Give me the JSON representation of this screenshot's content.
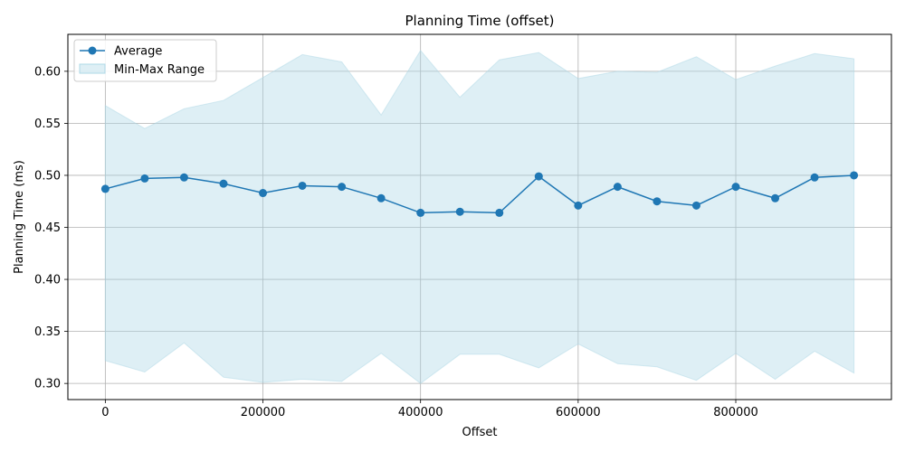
{
  "chart_data": {
    "type": "line",
    "title": "Planning Time (offset)",
    "xlabel": "Offset",
    "ylabel": "Planning Time (ms)",
    "xlim": [
      -47500,
      997500
    ],
    "ylim": [
      0.2845,
      0.6355
    ],
    "grid": true,
    "legend_position": "top-left",
    "x": [
      0,
      50000,
      100000,
      150000,
      200000,
      250000,
      300000,
      350000,
      400000,
      450000,
      500000,
      550000,
      600000,
      650000,
      700000,
      750000,
      800000,
      850000,
      900000,
      950000
    ],
    "x_ticks": [
      0,
      200000,
      400000,
      600000,
      800000
    ],
    "x_tick_labels": [
      "0",
      "200000",
      "400000",
      "600000",
      "800000"
    ],
    "y_ticks": [
      0.3,
      0.35,
      0.4,
      0.45,
      0.5,
      0.55,
      0.6
    ],
    "y_tick_labels": [
      "0.30",
      "0.35",
      "0.40",
      "0.45",
      "0.50",
      "0.55",
      "0.60"
    ],
    "series": [
      {
        "name": "Average",
        "kind": "line-marker",
        "color": "#1f77b4",
        "values": [
          0.487,
          0.497,
          0.498,
          0.492,
          0.483,
          0.49,
          0.489,
          0.478,
          0.464,
          0.465,
          0.464,
          0.499,
          0.471,
          0.489,
          0.475,
          0.471,
          0.489,
          0.478,
          0.498,
          0.5
        ]
      },
      {
        "name": "Min-Max Range",
        "kind": "band",
        "color": "#add8e6",
        "min": [
          0.322,
          0.311,
          0.339,
          0.306,
          0.301,
          0.304,
          0.302,
          0.329,
          0.3,
          0.328,
          0.328,
          0.315,
          0.338,
          0.319,
          0.316,
          0.303,
          0.329,
          0.304,
          0.331,
          0.31
        ],
        "max": [
          0.567,
          0.545,
          0.564,
          0.572,
          0.594,
          0.616,
          0.609,
          0.558,
          0.62,
          0.575,
          0.611,
          0.618,
          0.593,
          0.6,
          0.599,
          0.614,
          0.592,
          0.605,
          0.617,
          0.612
        ]
      }
    ]
  }
}
